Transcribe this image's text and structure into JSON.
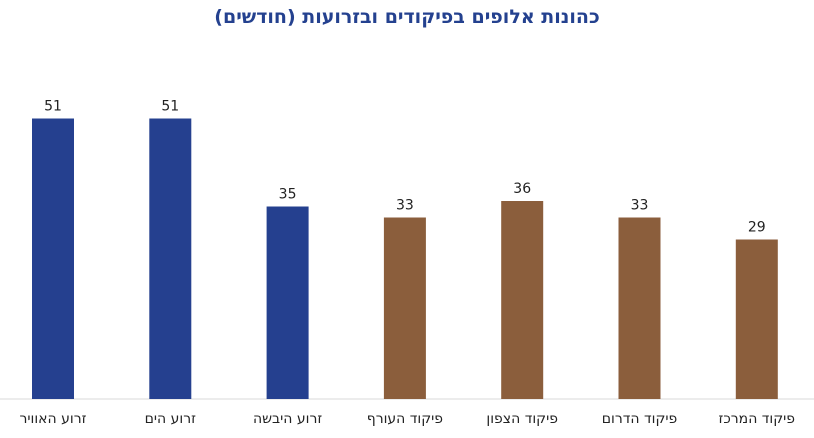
{
  "chart_data": {
    "type": "bar",
    "title": "כהונות אלופים בפיקודים ובזרועות (חודשים)",
    "categories": [
      "זרוע האוויר",
      "זרוע הים",
      "זרוע היבשה",
      "פיקוד העורף",
      "פיקוד הצפון",
      "פיקוד הדרום",
      "פיקוד המרכז"
    ],
    "values": [
      51,
      51,
      35,
      33,
      36,
      33,
      29
    ],
    "colors": [
      "#25408f",
      "#25408f",
      "#25408f",
      "#8b5e3c",
      "#8b5e3c",
      "#8b5e3c",
      "#8b5e3c"
    ],
    "xlabel": "",
    "ylabel": "",
    "ylim": [
      0,
      58
    ],
    "grid": false,
    "legend": "none"
  }
}
